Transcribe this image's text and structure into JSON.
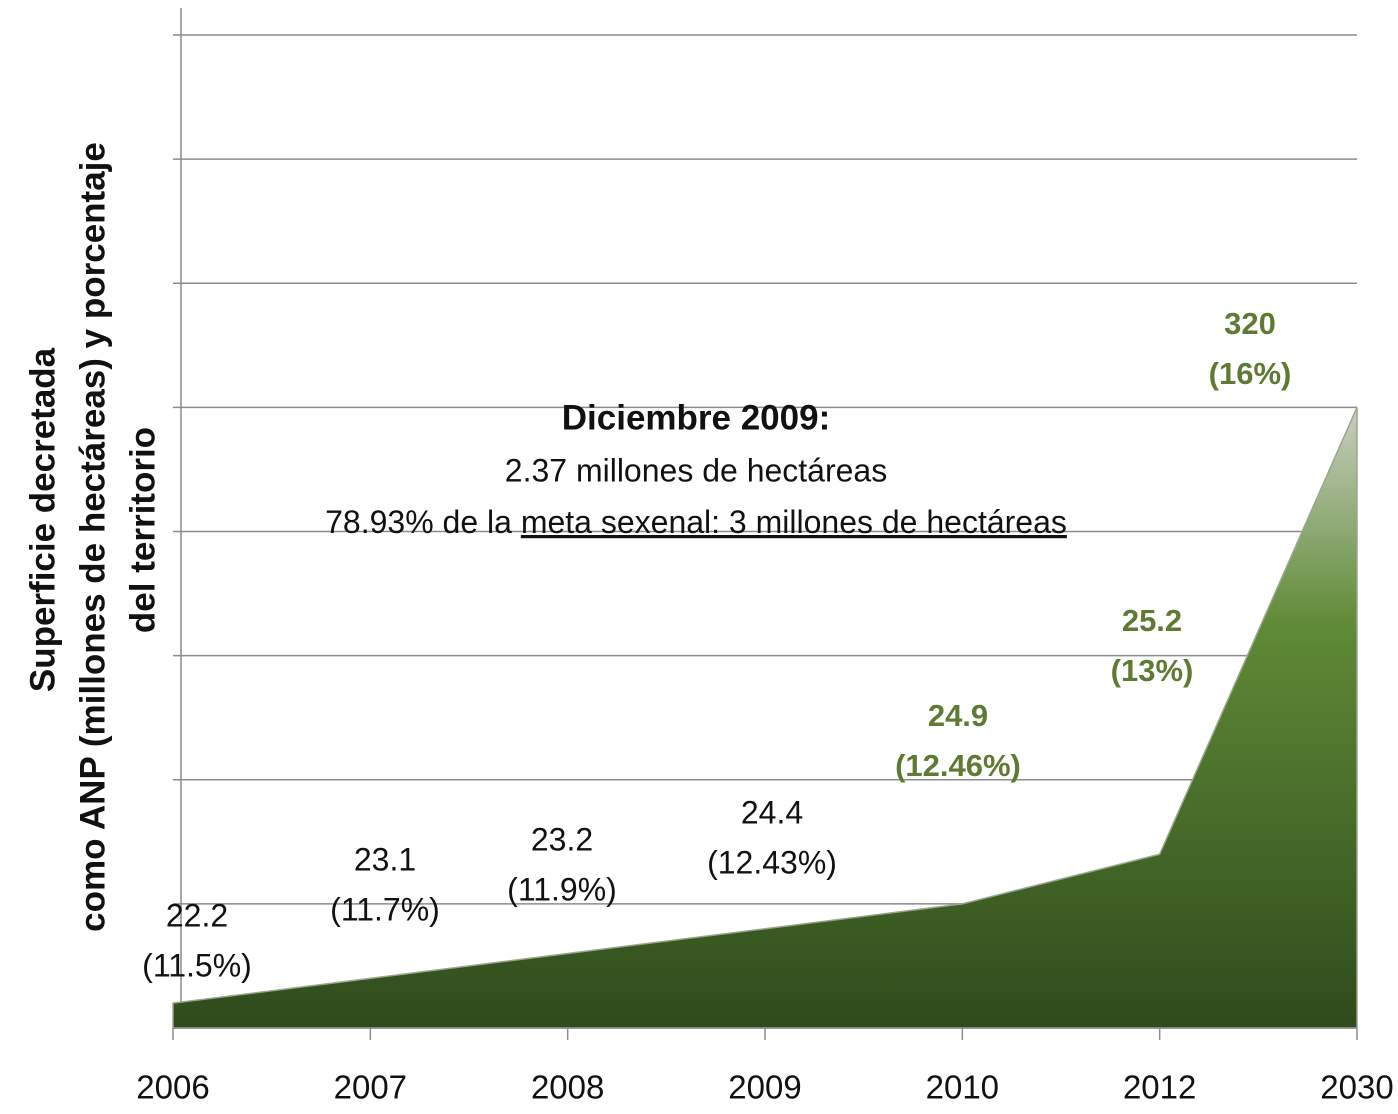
{
  "chart_data": {
    "type": "area",
    "ylabel": [
      "Superficie decretada",
      "como ANP (millones de hectáreas) y porcentaje",
      "del territorio"
    ],
    "categories": [
      "2006",
      "2007",
      "2008",
      "2009",
      "2010",
      "2012",
      "2030"
    ],
    "values": [
      0.2,
      0.4,
      0.6,
      0.8,
      1.0,
      1.4,
      5.0
    ],
    "ylim": [
      0,
      8
    ],
    "yticks": [
      0,
      1,
      2,
      3,
      4,
      5,
      6,
      7,
      8
    ],
    "grid": true,
    "colors": {
      "area_top": "#c9cfc0",
      "area_mid": "#5f8a36",
      "area_bottom": "#2f4a1c",
      "highlight": "#5f7a32",
      "text": "#111111"
    },
    "data_labels": [
      [
        "22.2",
        "(11.5%)"
      ],
      [
        "23.1",
        "(11.7%)"
      ],
      [
        "23.2",
        "(11.9%)"
      ],
      [
        "24.4",
        "(12.43%)"
      ],
      [
        "24.9",
        "(12.46%)"
      ],
      [
        "25.2",
        "(13%)"
      ],
      [
        "320",
        "(16%)"
      ]
    ],
    "data_label_highlight": [
      false,
      false,
      false,
      false,
      true,
      true,
      true
    ],
    "annotation": {
      "title": "Diciembre 2009:",
      "line1": "2.37 millones de hectáreas",
      "line2": "78.93% de la",
      "line2_underlined": "meta sexenal: 3 millones de hectáreas"
    }
  }
}
